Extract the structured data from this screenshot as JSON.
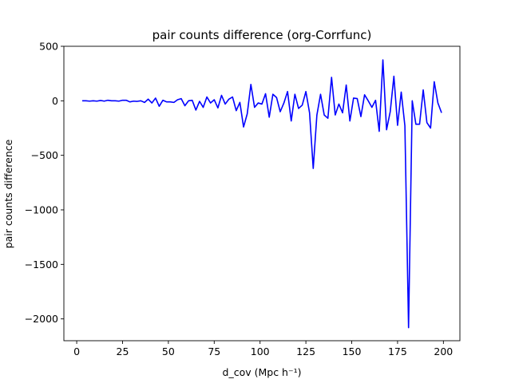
{
  "chart_data": {
    "type": "line",
    "title": "pair counts difference (org-Corrfunc)",
    "xlabel": "d_cov (Mpc h⁻¹)",
    "ylabel": "pair counts difference",
    "xlim": [
      -7,
      209
    ],
    "ylim": [
      -2200,
      500
    ],
    "xticks": [
      0,
      25,
      50,
      75,
      100,
      125,
      150,
      175,
      200
    ],
    "xtick_labels": [
      "0",
      "25",
      "50",
      "75",
      "100",
      "125",
      "150",
      "175",
      "200"
    ],
    "yticks": [
      500,
      0,
      -500,
      -1000,
      -1500,
      -2000
    ],
    "ytick_labels": [
      "500",
      "0",
      "−500",
      "−1000",
      "−1500",
      "−2000"
    ],
    "grid": false,
    "series": [
      {
        "color": "#0000ff",
        "x": [
          3,
          5,
          7,
          9,
          11,
          13,
          15,
          17,
          19,
          21,
          23,
          25,
          27,
          29,
          31,
          33,
          35,
          37,
          39,
          41,
          43,
          45,
          47,
          49,
          51,
          53,
          55,
          57,
          59,
          61,
          63,
          65,
          67,
          69,
          71,
          73,
          75,
          77,
          79,
          81,
          83,
          85,
          87,
          89,
          91,
          93,
          95,
          97,
          99,
          101,
          103,
          105,
          107,
          109,
          111,
          113,
          115,
          117,
          119,
          121,
          123,
          125,
          127,
          129,
          131,
          133,
          135,
          137,
          139,
          141,
          143,
          145,
          147,
          149,
          151,
          153,
          155,
          157,
          159,
          161,
          163,
          165,
          167,
          169,
          171,
          173,
          175,
          177,
          179,
          181,
          183,
          185,
          187,
          189,
          191,
          193,
          195,
          197,
          199
        ],
        "y": [
          0,
          0,
          -3,
          0,
          -3,
          3,
          -3,
          5,
          0,
          0,
          -3,
          5,
          5,
          -10,
          -3,
          -5,
          0,
          -15,
          15,
          -20,
          25,
          -50,
          5,
          -10,
          -10,
          -15,
          10,
          20,
          -45,
          0,
          5,
          -85,
          -5,
          -60,
          35,
          -20,
          10,
          -65,
          50,
          -30,
          15,
          35,
          -90,
          -15,
          -240,
          -120,
          150,
          -60,
          -20,
          -30,
          65,
          -150,
          60,
          30,
          -100,
          -20,
          85,
          -185,
          60,
          -70,
          -40,
          85,
          -110,
          -620,
          -130,
          60,
          -130,
          -160,
          215,
          -130,
          -30,
          -110,
          145,
          -185,
          25,
          20,
          -145,
          55,
          0,
          -60,
          5,
          -280,
          375,
          -265,
          -100,
          225,
          -225,
          80,
          -230,
          -2080,
          0,
          -215,
          -215,
          100,
          -200,
          -250,
          175,
          -20,
          -110
        ]
      }
    ]
  }
}
